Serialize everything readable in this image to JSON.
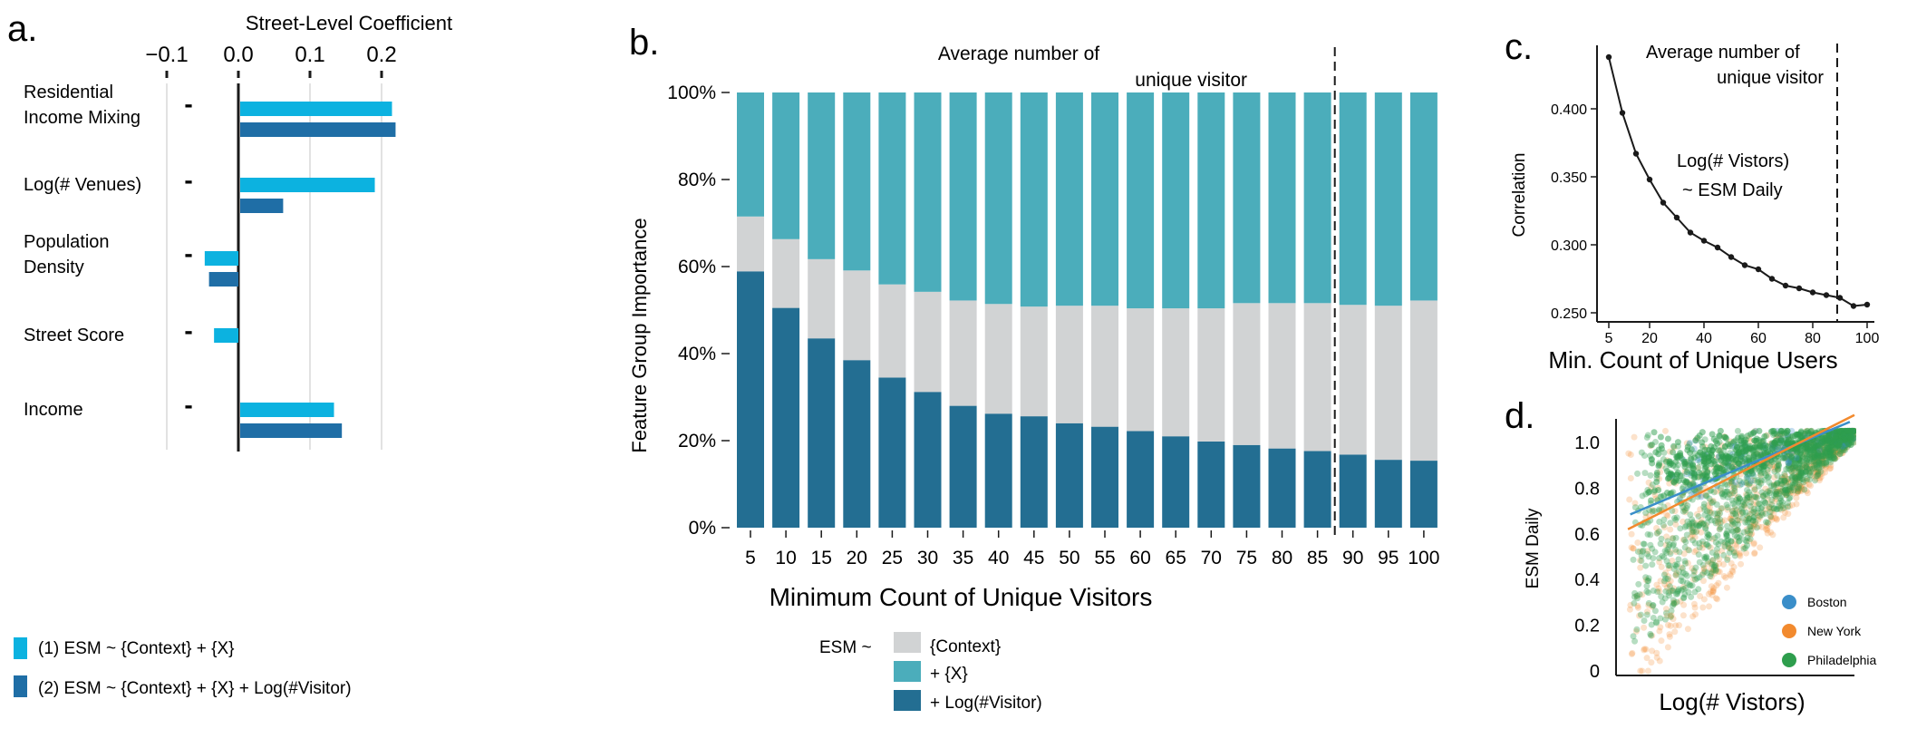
{
  "colors": {
    "light_blue": "#0cb2e0",
    "dark_blue": "#1f6ea6",
    "bar_dark": "#236e92",
    "bar_gray": "#d1d3d4",
    "bar_teal": "#4badbb",
    "boston": "#3a8ec9",
    "newyork": "#f28a2e",
    "philadelphia": "#2e9e4d",
    "axis": "#1a1a1a",
    "grid": "#d9d9d9"
  },
  "panels": {
    "a": {
      "label": "a."
    },
    "b": {
      "label": "b."
    },
    "c": {
      "label": "c."
    },
    "d": {
      "label": "d."
    }
  },
  "chart_data": [
    {
      "id": "a",
      "type": "bar",
      "orientation": "horizontal",
      "title": "Street-Level Coefficient",
      "xlim": [
        -0.1,
        0.2
      ],
      "xticks": [
        {
          "value": -0.1,
          "label": "−0.1"
        },
        {
          "value": 0.0,
          "label": "0.0"
        },
        {
          "value": 0.1,
          "label": "0.1"
        },
        {
          "value": 0.2,
          "label": "0.2"
        }
      ],
      "categories": [
        {
          "line1": "Residential",
          "line2": "Income Mixing"
        },
        {
          "line1": "Log(# Venues)",
          "line2": ""
        },
        {
          "line1": "Population",
          "line2": "Density"
        },
        {
          "line1": "Street Score",
          "line2": ""
        },
        {
          "line1": "Income",
          "line2": ""
        }
      ],
      "category_marks": [
        "-",
        "-",
        "-",
        "-",
        "-"
      ],
      "series": [
        {
          "name": "(1) ESM ~ {Context} + {X}",
          "values": [
            0.212,
            0.188,
            -0.047,
            -0.034,
            0.131
          ]
        },
        {
          "name": "(2) ESM ~ {Context} + {X} + Log(#Visitor)",
          "values": [
            0.217,
            0.06,
            -0.041,
            null,
            0.142
          ]
        }
      ]
    },
    {
      "id": "b",
      "type": "bar",
      "stacked": true,
      "xlabel": "Minimum Count of Unique Visitors",
      "ylabel": "Feature Group Importance",
      "ylim": [
        0,
        100
      ],
      "yticks": [
        "0%",
        "20%",
        "40%",
        "60%",
        "80%",
        "100%"
      ],
      "categories": [
        "5",
        "10",
        "15",
        "20",
        "25",
        "30",
        "35",
        "40",
        "45",
        "50",
        "55",
        "60",
        "65",
        "70",
        "75",
        "80",
        "85",
        "90",
        "95",
        "100"
      ],
      "series": [
        {
          "name": "+ Log(#Visitor)",
          "values": [
            58.9,
            50.5,
            43.5,
            38.5,
            34.5,
            31.2,
            28.0,
            26.2,
            25.6,
            24.0,
            23.2,
            22.2,
            21.0,
            19.8,
            19.0,
            18.2,
            17.6,
            16.8,
            15.6,
            15.4
          ]
        },
        {
          "name": "{Context}",
          "values": [
            12.6,
            15.8,
            18.2,
            20.6,
            21.4,
            23.0,
            24.2,
            25.2,
            25.2,
            27.0,
            27.8,
            28.2,
            29.4,
            30.6,
            32.6,
            33.4,
            34.0,
            34.4,
            35.4,
            36.8
          ]
        },
        {
          "name": "+ {X}",
          "values": [
            28.5,
            33.7,
            38.3,
            40.9,
            44.1,
            45.8,
            47.8,
            48.6,
            49.2,
            49.0,
            49.0,
            49.6,
            49.6,
            49.6,
            48.4,
            48.4,
            48.4,
            48.8,
            49.0,
            47.8
          ]
        }
      ],
      "legend_prefix": "ESM ~",
      "legend_order": [
        "{Context}",
        "+ {X}",
        "+ Log(#Visitor)"
      ],
      "vline": {
        "between": [
          "85",
          "90"
        ],
        "label_line1": "Average number of",
        "label_line2": "unique visitor"
      }
    },
    {
      "id": "c",
      "type": "line",
      "xlabel": "Min. Count of Unique Users",
      "ylabel": "Correlation",
      "xlim": [
        3,
        102
      ],
      "ylim": [
        0.248,
        0.445
      ],
      "xticks": [
        {
          "value": 5,
          "label": "5"
        },
        {
          "value": 20,
          "label": "20"
        },
        {
          "value": 40,
          "label": "40"
        },
        {
          "value": 60,
          "label": "60"
        },
        {
          "value": 80,
          "label": "80"
        },
        {
          "value": 100,
          "label": "100"
        }
      ],
      "yticks": [
        {
          "value": 0.25,
          "label": "0.250"
        },
        {
          "value": 0.3,
          "label": "0.300"
        },
        {
          "value": 0.35,
          "label": "0.350"
        },
        {
          "value": 0.4,
          "label": "0.400"
        }
      ],
      "x": [
        5,
        10,
        15,
        20,
        25,
        30,
        35,
        40,
        45,
        50,
        55,
        60,
        65,
        70,
        75,
        80,
        85,
        90,
        95,
        100
      ],
      "y": [
        0.438,
        0.397,
        0.367,
        0.348,
        0.331,
        0.32,
        0.309,
        0.303,
        0.298,
        0.291,
        0.285,
        0.282,
        0.275,
        0.27,
        0.268,
        0.265,
        0.263,
        0.261,
        0.255,
        0.256
      ],
      "annotation_line1": "Log(# Vistors)",
      "annotation_line2": "~ ESM Daily",
      "vline": {
        "x": 89,
        "label_line1": "Average number of",
        "label_line2": "unique visitor"
      }
    },
    {
      "id": "d",
      "type": "scatter",
      "xlabel": "Log(# Vistors)",
      "ylabel": "ESM Daily",
      "ylim": [
        0,
        1.08
      ],
      "yticks": [
        {
          "value": 0,
          "label": "0"
        },
        {
          "value": 0.2,
          "label": "0.2"
        },
        {
          "value": 0.4,
          "label": "0.4"
        },
        {
          "value": 0.6,
          "label": "0.6"
        },
        {
          "value": 0.8,
          "label": "0.8"
        },
        {
          "value": 1.0,
          "label": "1.0"
        }
      ],
      "xlim": [
        0,
        1
      ],
      "series": [
        {
          "name": "Boston",
          "fit": {
            "x": [
              0.03,
              0.98
            ],
            "y": [
              0.685,
              1.09
            ]
          }
        },
        {
          "name": "New York",
          "fit": {
            "x": [
              0.02,
              1.0
            ],
            "y": [
              0.62,
              1.12
            ]
          }
        },
        {
          "name": "Philadelphia",
          "fit": null
        }
      ]
    }
  ]
}
